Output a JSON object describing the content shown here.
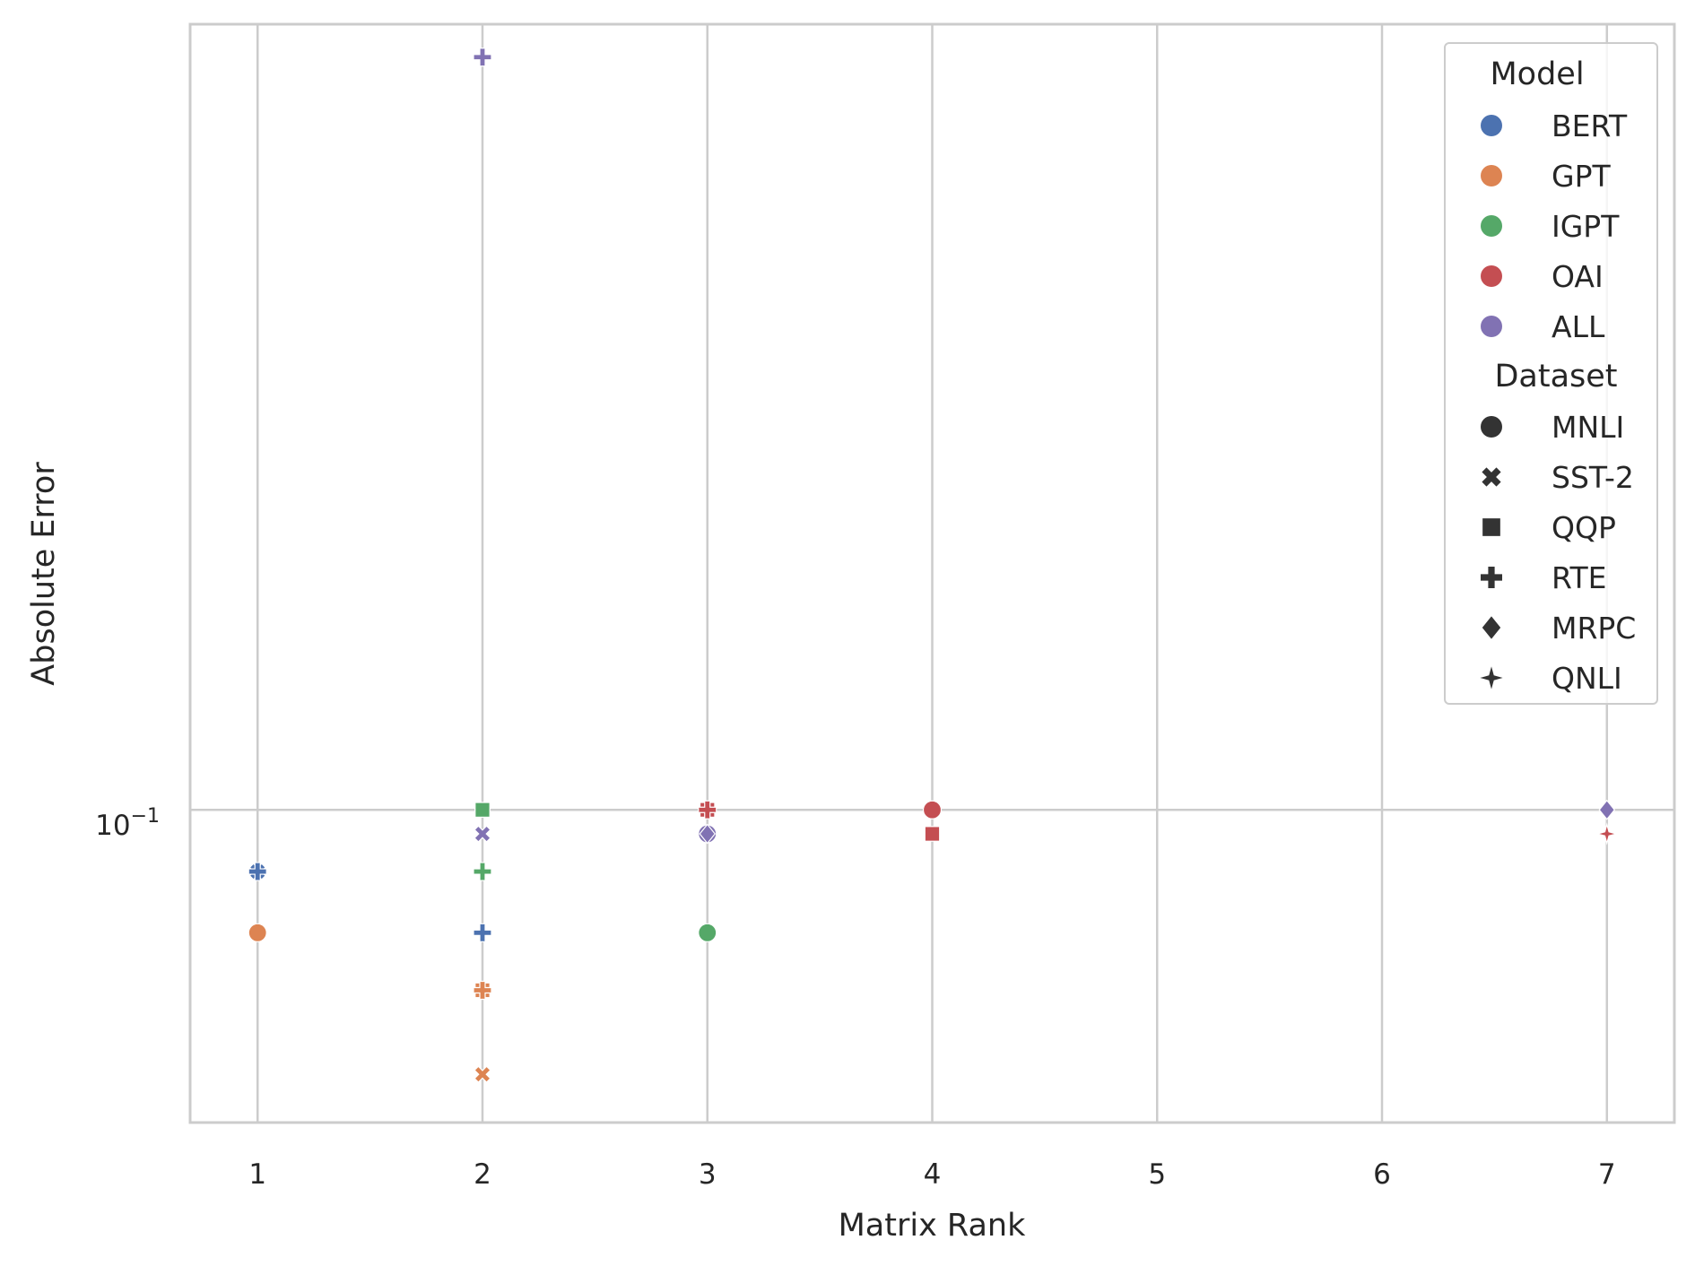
{
  "chart_data": {
    "type": "scatter",
    "title": "",
    "xlabel": "Matrix Rank",
    "ylabel": "Absolute Error",
    "xticks": [
      "1",
      "2",
      "3",
      "4",
      "5",
      "6",
      "7"
    ],
    "xlim": [
      0.7,
      7.3
    ],
    "yscale": "log",
    "ylim_log10": [
      -1.41,
      0.03
    ],
    "ytick_label": "10",
    "ytick_exponent": "−1",
    "grid": true,
    "legend_position": "top-right",
    "legend": {
      "model_title": "Model",
      "models": [
        {
          "name": "BERT",
          "color": "#4c72b0"
        },
        {
          "name": "GPT",
          "color": "#dd8452"
        },
        {
          "name": "IGPT",
          "color": "#55a868"
        },
        {
          "name": "OAI",
          "color": "#c44e52"
        },
        {
          "name": "ALL",
          "color": "#8172b3"
        }
      ],
      "dataset_title": "Dataset",
      "datasets": [
        {
          "name": "MNLI",
          "marker": "circle"
        },
        {
          "name": "SST-2",
          "marker": "x"
        },
        {
          "name": "QQP",
          "marker": "square"
        },
        {
          "name": "RTE",
          "marker": "plus"
        },
        {
          "name": "MRPC",
          "marker": "diamond"
        },
        {
          "name": "QNLI",
          "marker": "star"
        }
      ],
      "marker_color": "#333333"
    },
    "points": [
      {
        "model": "ALL",
        "dataset": "RTE",
        "x": 2,
        "y": 0.97
      },
      {
        "model": "BERT",
        "dataset": "SST-2",
        "x": 1,
        "y": 0.083
      },
      {
        "model": "BERT",
        "dataset": "RTE",
        "x": 1,
        "y": 0.083
      },
      {
        "model": "GPT",
        "dataset": "MNLI",
        "x": 1,
        "y": 0.069
      },
      {
        "model": "BERT",
        "dataset": "QQP",
        "x": 2,
        "y": 0.1
      },
      {
        "model": "IGPT",
        "dataset": "QQP",
        "x": 2,
        "y": 0.1
      },
      {
        "model": "ALL",
        "dataset": "SST-2",
        "x": 2,
        "y": 0.093
      },
      {
        "model": "IGPT",
        "dataset": "RTE",
        "x": 2,
        "y": 0.083
      },
      {
        "model": "BERT",
        "dataset": "RTE",
        "x": 2,
        "y": 0.069
      },
      {
        "model": "GPT",
        "dataset": "QQP",
        "x": 2,
        "y": 0.058
      },
      {
        "model": "GPT",
        "dataset": "RTE",
        "x": 2,
        "y": 0.058
      },
      {
        "model": "GPT",
        "dataset": "SST-2",
        "x": 2,
        "y": 0.045
      },
      {
        "model": "OAI",
        "dataset": "QQP",
        "x": 3,
        "y": 0.1
      },
      {
        "model": "OAI",
        "dataset": "RTE",
        "x": 3,
        "y": 0.1
      },
      {
        "model": "ALL",
        "dataset": "MNLI",
        "x": 3,
        "y": 0.093
      },
      {
        "model": "ALL",
        "dataset": "MRPC",
        "x": 3,
        "y": 0.093
      },
      {
        "model": "IGPT",
        "dataset": "MNLI",
        "x": 3,
        "y": 0.069
      },
      {
        "model": "OAI",
        "dataset": "MNLI",
        "x": 4,
        "y": 0.1
      },
      {
        "model": "OAI",
        "dataset": "QQP",
        "x": 4,
        "y": 0.093
      },
      {
        "model": "ALL",
        "dataset": "MRPC",
        "x": 7,
        "y": 0.1
      },
      {
        "model": "OAI",
        "dataset": "QNLI",
        "x": 7,
        "y": 0.093
      }
    ]
  }
}
